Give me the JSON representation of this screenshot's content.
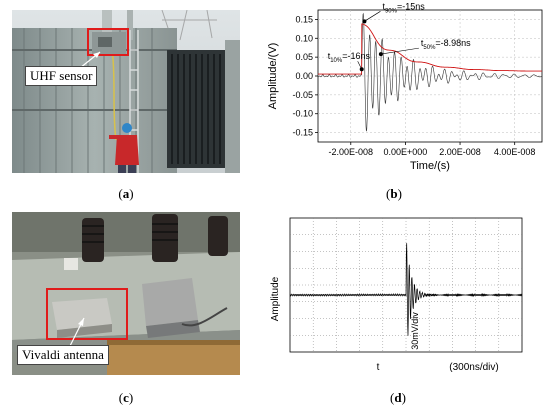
{
  "panels": {
    "a": {
      "caption_open": "(",
      "caption_letter": "a",
      "caption_close": ")",
      "callout": "UHF sensor"
    },
    "b": {
      "caption_open": "(",
      "caption_letter": "b",
      "caption_close": ")"
    },
    "c": {
      "caption_open": "(",
      "caption_letter": "c",
      "caption_close": ")",
      "callout": "Vivaldi antenna"
    },
    "d": {
      "caption_open": "(",
      "caption_letter": "d",
      "caption_close": ")"
    }
  },
  "chart_data": [
    {
      "type": "line",
      "ylabel": "Amplitude/(V)",
      "xlabel": "Time/(s)",
      "xlim": [
        -3.2e-08,
        5e-08
      ],
      "ylim": [
        -0.175,
        0.175
      ],
      "y_ticks": [
        -0.15,
        -0.1,
        -0.05,
        0.0,
        0.05,
        0.1,
        0.15
      ],
      "y_tick_labels": [
        "-0.15",
        "-0.10",
        "-0.05",
        "0.00",
        "0.05",
        "0.10",
        "0.15"
      ],
      "x_ticks": [
        -2e-08,
        0,
        2e-08,
        4e-08
      ],
      "x_tick_labels": [
        "-2.00E-008",
        "0.00E+000",
        "2.00E-008",
        "4.00E-008"
      ],
      "grid": true,
      "series": [
        {
          "color": "#333333",
          "description_values": {
            "onset": -1.6e-08,
            "peak": 0.15,
            "trough": -0.14
          }
        },
        {
          "color": "#d01818"
        }
      ],
      "annotations": [
        {
          "sub": "90%",
          "text": "=-15ns",
          "x": -1.5e-08,
          "y": 0.145
        },
        {
          "sub": "10%",
          "text": "=-16ns",
          "x": -1.6e-08,
          "y": 0.018
        },
        {
          "sub": "50%",
          "text": "=-8.98ns",
          "x": -8.98e-09,
          "y": 0.058
        }
      ],
      "annotation_prefix": "t"
    },
    {
      "type": "line",
      "ylabel": "Amplitude",
      "xlabel": "t",
      "x_scale_label": "(300ns/div)",
      "y_scale_label": "30mV/div",
      "grid": true,
      "divisions": {
        "x": 10,
        "y": 8
      }
    }
  ]
}
